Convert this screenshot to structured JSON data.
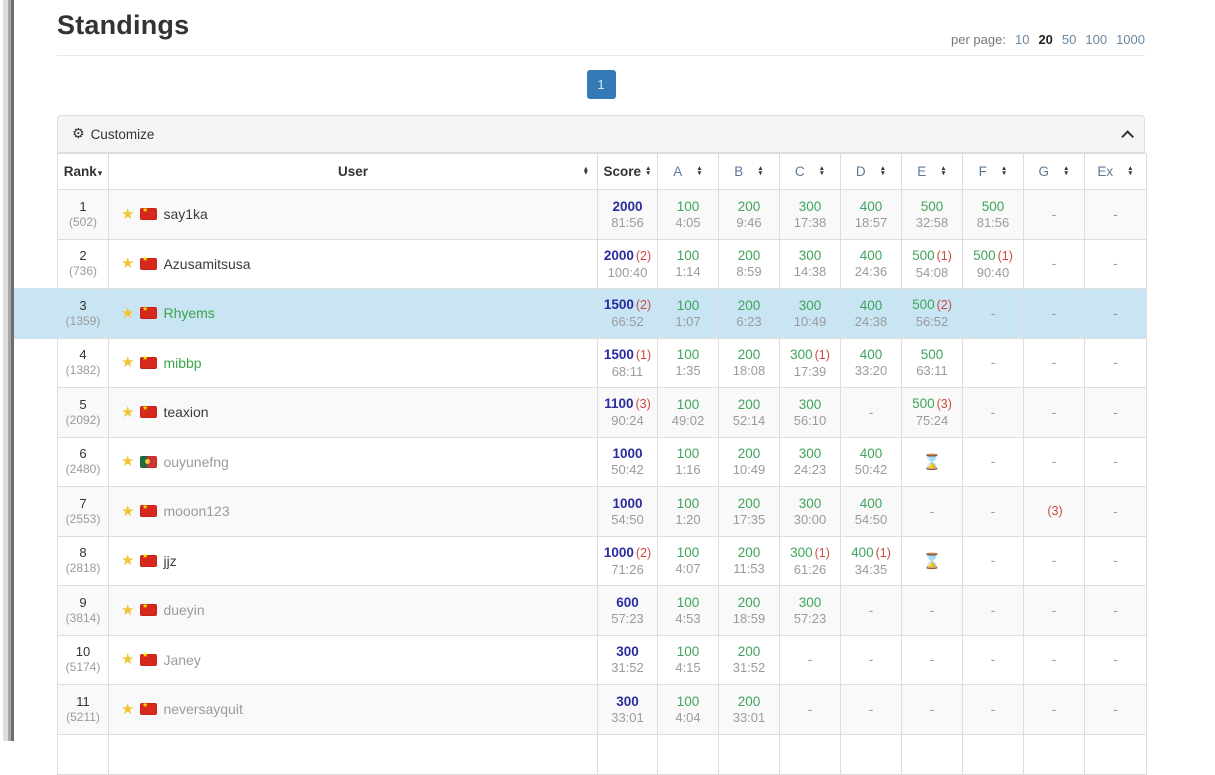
{
  "page": {
    "title": "Standings"
  },
  "per_page": {
    "label": "per page:",
    "options": [
      "10",
      "20",
      "50",
      "100",
      "1000"
    ],
    "selected": "20"
  },
  "pagination": {
    "pages": [
      "1"
    ],
    "active": "1"
  },
  "customize": {
    "label": "Customize"
  },
  "icons": {
    "gear": "⚙",
    "star": "★",
    "sort_up": "▲",
    "sort_down": "▼",
    "rank_caret": "▾",
    "hourglass": "⌛",
    "dash": "-"
  },
  "colors": {
    "accent_blue": "#337ab7",
    "score_blue": "#2b2ba0",
    "points_green": "#3fa45b",
    "attempts_red": "#cc4b42",
    "highlight_row": "#c9e5f3",
    "header_link": "#5b7a99"
  },
  "table": {
    "headers": {
      "rank": "Rank",
      "user": "User",
      "score": "Score",
      "problems": [
        "A",
        "B",
        "C",
        "D",
        "E",
        "F",
        "G",
        "Ex"
      ]
    },
    "rows": [
      {
        "rank": "1",
        "rating": "(502)",
        "user": "say1ka",
        "user_color": "black",
        "flag": "cn",
        "highlight": false,
        "score": {
          "v": "2000",
          "a": "",
          "t": "81:56"
        },
        "cells": [
          {
            "v": "100",
            "a": "",
            "t": "4:05"
          },
          {
            "v": "200",
            "a": "",
            "t": "9:46"
          },
          {
            "v": "300",
            "a": "",
            "t": "17:38"
          },
          {
            "v": "400",
            "a": "",
            "t": "18:57"
          },
          {
            "v": "500",
            "a": "",
            "t": "32:58"
          },
          {
            "v": "500",
            "a": "",
            "t": "81:56"
          },
          {
            "dash": true
          },
          {
            "dash": true
          }
        ]
      },
      {
        "rank": "2",
        "rating": "(736)",
        "user": "Azusamitsusa",
        "user_color": "black",
        "flag": "cn",
        "highlight": false,
        "score": {
          "v": "2000",
          "a": "(2)",
          "t": "100:40"
        },
        "cells": [
          {
            "v": "100",
            "a": "",
            "t": "1:14"
          },
          {
            "v": "200",
            "a": "",
            "t": "8:59"
          },
          {
            "v": "300",
            "a": "",
            "t": "14:38"
          },
          {
            "v": "400",
            "a": "",
            "t": "24:36"
          },
          {
            "v": "500",
            "a": "(1)",
            "t": "54:08"
          },
          {
            "v": "500",
            "a": "(1)",
            "t": "90:40"
          },
          {
            "dash": true
          },
          {
            "dash": true
          }
        ]
      },
      {
        "rank": "3",
        "rating": "(1359)",
        "user": "Rhyems",
        "user_color": "green",
        "flag": "cn",
        "highlight": true,
        "score": {
          "v": "1500",
          "a": "(2)",
          "t": "66:52"
        },
        "cells": [
          {
            "v": "100",
            "a": "",
            "t": "1:07"
          },
          {
            "v": "200",
            "a": "",
            "t": "6:23"
          },
          {
            "v": "300",
            "a": "",
            "t": "10:49"
          },
          {
            "v": "400",
            "a": "",
            "t": "24:38"
          },
          {
            "v": "500",
            "a": "(2)",
            "t": "56:52"
          },
          {
            "dash": true
          },
          {
            "dash": true
          },
          {
            "dash": true
          }
        ]
      },
      {
        "rank": "4",
        "rating": "(1382)",
        "user": "mibbp",
        "user_color": "green",
        "flag": "cn",
        "highlight": false,
        "score": {
          "v": "1500",
          "a": "(1)",
          "t": "68:11"
        },
        "cells": [
          {
            "v": "100",
            "a": "",
            "t": "1:35"
          },
          {
            "v": "200",
            "a": "",
            "t": "18:08"
          },
          {
            "v": "300",
            "a": "(1)",
            "t": "17:39"
          },
          {
            "v": "400",
            "a": "",
            "t": "33:20"
          },
          {
            "v": "500",
            "a": "",
            "t": "63:11"
          },
          {
            "dash": true
          },
          {
            "dash": true
          },
          {
            "dash": true
          }
        ]
      },
      {
        "rank": "5",
        "rating": "(2092)",
        "user": "teaxion",
        "user_color": "black",
        "flag": "cn",
        "highlight": false,
        "score": {
          "v": "1100",
          "a": "(3)",
          "t": "90:24"
        },
        "cells": [
          {
            "v": "100",
            "a": "",
            "t": "49:02"
          },
          {
            "v": "200",
            "a": "",
            "t": "52:14"
          },
          {
            "v": "300",
            "a": "",
            "t": "56:10"
          },
          {
            "dash": true
          },
          {
            "v": "500",
            "a": "(3)",
            "t": "75:24"
          },
          {
            "dash": true
          },
          {
            "dash": true
          },
          {
            "dash": true
          }
        ]
      },
      {
        "rank": "6",
        "rating": "(2480)",
        "user": "ouyunefng",
        "user_color": "gray",
        "flag": "pt",
        "highlight": false,
        "score": {
          "v": "1000",
          "a": "",
          "t": "50:42"
        },
        "cells": [
          {
            "v": "100",
            "a": "",
            "t": "1:16"
          },
          {
            "v": "200",
            "a": "",
            "t": "10:49"
          },
          {
            "v": "300",
            "a": "",
            "t": "24:23"
          },
          {
            "v": "400",
            "a": "",
            "t": "50:42"
          },
          {
            "pending": true
          },
          {
            "dash": true
          },
          {
            "dash": true
          },
          {
            "dash": true
          }
        ]
      },
      {
        "rank": "7",
        "rating": "(2553)",
        "user": "mooon123",
        "user_color": "gray",
        "flag": "cn",
        "highlight": false,
        "score": {
          "v": "1000",
          "a": "",
          "t": "54:50"
        },
        "cells": [
          {
            "v": "100",
            "a": "",
            "t": "1:20"
          },
          {
            "v": "200",
            "a": "",
            "t": "17:35"
          },
          {
            "v": "300",
            "a": "",
            "t": "30:00"
          },
          {
            "v": "400",
            "a": "",
            "t": "54:50"
          },
          {
            "dash": true
          },
          {
            "dash": true
          },
          {
            "a": "(3)",
            "attempts_only": true
          },
          {
            "dash": true
          }
        ]
      },
      {
        "rank": "8",
        "rating": "(2818)",
        "user": "jjz",
        "user_color": "black",
        "flag": "cn",
        "highlight": false,
        "score": {
          "v": "1000",
          "a": "(2)",
          "t": "71:26"
        },
        "cells": [
          {
            "v": "100",
            "a": "",
            "t": "4:07"
          },
          {
            "v": "200",
            "a": "",
            "t": "11:53"
          },
          {
            "v": "300",
            "a": "(1)",
            "t": "61:26"
          },
          {
            "v": "400",
            "a": "(1)",
            "t": "34:35"
          },
          {
            "pending": true
          },
          {
            "dash": true
          },
          {
            "dash": true
          },
          {
            "dash": true
          }
        ]
      },
      {
        "rank": "9",
        "rating": "(3814)",
        "user": "dueyin",
        "user_color": "gray",
        "flag": "cn",
        "highlight": false,
        "score": {
          "v": "600",
          "a": "",
          "t": "57:23"
        },
        "cells": [
          {
            "v": "100",
            "a": "",
            "t": "4:53"
          },
          {
            "v": "200",
            "a": "",
            "t": "18:59"
          },
          {
            "v": "300",
            "a": "",
            "t": "57:23"
          },
          {
            "dash": true
          },
          {
            "dash": true
          },
          {
            "dash": true
          },
          {
            "dash": true
          },
          {
            "dash": true
          }
        ]
      },
      {
        "rank": "10",
        "rating": "(5174)",
        "user": "Janey",
        "user_color": "gray",
        "flag": "cn",
        "highlight": false,
        "score": {
          "v": "300",
          "a": "",
          "t": "31:52"
        },
        "cells": [
          {
            "v": "100",
            "a": "",
            "t": "4:15"
          },
          {
            "v": "200",
            "a": "",
            "t": "31:52"
          },
          {
            "dash": true
          },
          {
            "dash": true
          },
          {
            "dash": true
          },
          {
            "dash": true
          },
          {
            "dash": true
          },
          {
            "dash": true
          }
        ]
      },
      {
        "rank": "11",
        "rating": "(5211)",
        "user": "neversayquit",
        "user_color": "gray",
        "flag": "cn",
        "highlight": false,
        "score": {
          "v": "300",
          "a": "",
          "t": "33:01"
        },
        "cells": [
          {
            "v": "100",
            "a": "",
            "t": "4:04"
          },
          {
            "v": "200",
            "a": "",
            "t": "33:01"
          },
          {
            "dash": true
          },
          {
            "dash": true
          },
          {
            "dash": true
          },
          {
            "dash": true
          },
          {
            "dash": true
          },
          {
            "dash": true
          }
        ]
      }
    ]
  }
}
